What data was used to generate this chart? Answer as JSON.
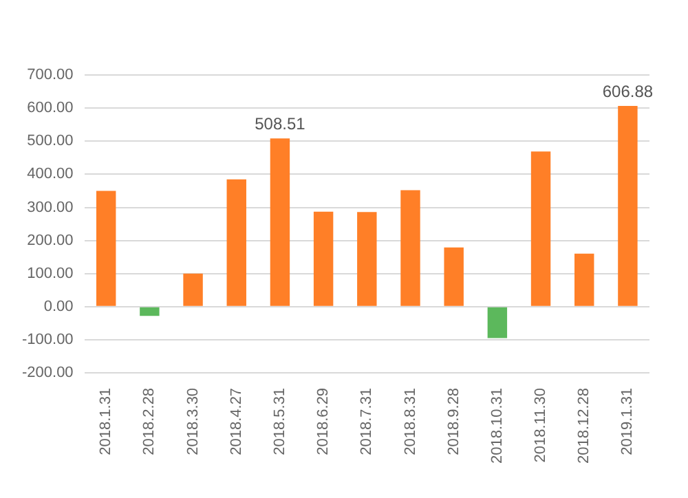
{
  "chart_data": {
    "type": "bar",
    "categories": [
      "2018.1.31",
      "2018.2.28",
      "2018.3.30",
      "2018.4.27",
      "2018.5.31",
      "2018.6.29",
      "2018.7.31",
      "2018.8.31",
      "2018.9.28",
      "2018.10.31",
      "2018.11.30",
      "2018.12.28",
      "2019.1.31"
    ],
    "values": [
      350,
      -28,
      100,
      385,
      508.51,
      287,
      286,
      352,
      179,
      -95,
      469,
      160,
      606.88
    ],
    "colors": [
      "#ff7f27",
      "#5cb85c",
      "#ff7f27",
      "#ff7f27",
      "#ff7f27",
      "#ff7f27",
      "#ff7f27",
      "#ff7f27",
      "#ff7f27",
      "#5cb85c",
      "#ff7f27",
      "#ff7f27",
      "#ff7f27"
    ],
    "value_labels": [
      null,
      null,
      null,
      null,
      "508.51",
      null,
      null,
      null,
      null,
      null,
      null,
      null,
      "606.88"
    ],
    "ylim": [
      -200,
      700
    ],
    "yticks": [
      {
        "value": -200,
        "label": "-200.00"
      },
      {
        "value": -100,
        "label": "-100.00"
      },
      {
        "value": 0,
        "label": "0.00"
      },
      {
        "value": 100,
        "label": "100.00"
      },
      {
        "value": 200,
        "label": "200.00"
      },
      {
        "value": 300,
        "label": "300.00"
      },
      {
        "value": 400,
        "label": "400.00"
      },
      {
        "value": 500,
        "label": "500.00"
      },
      {
        "value": 600,
        "label": "600.00"
      },
      {
        "value": 700,
        "label": "700.00"
      }
    ],
    "grid": "y",
    "legend": false
  }
}
